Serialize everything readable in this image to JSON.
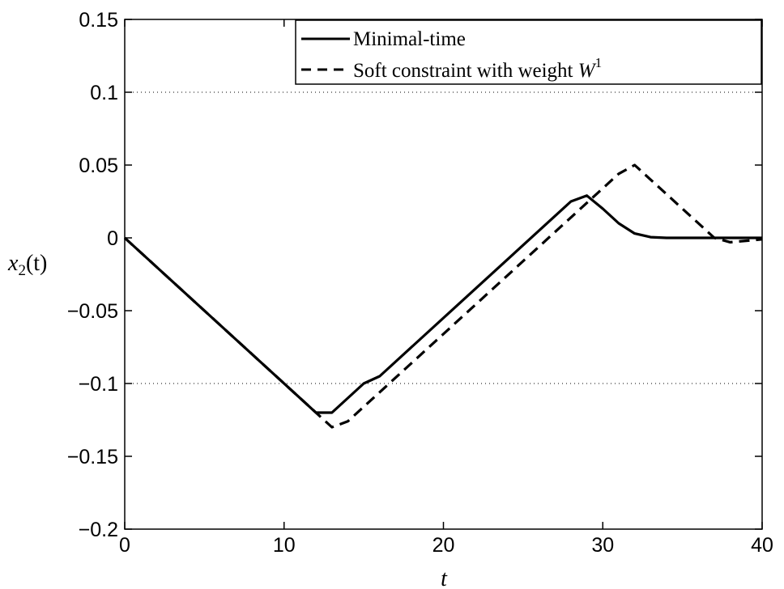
{
  "chart_data": {
    "type": "line",
    "xlabel": "t",
    "ylabel": "x2(t)",
    "ylabel_main": "x",
    "ylabel_sub": "2",
    "ylabel_arg": "(t)",
    "xlim": [
      0,
      40
    ],
    "ylim": [
      -0.2,
      0.15
    ],
    "xticks": [
      0,
      10,
      20,
      30,
      40
    ],
    "xtick_labels": [
      "0",
      "10",
      "20",
      "30",
      "40"
    ],
    "yticks": [
      0.15,
      0.1,
      0.05,
      0,
      -0.05,
      -0.1,
      -0.15,
      -0.2
    ],
    "ytick_labels": [
      "0.15",
      "0.1",
      "0.05",
      "0",
      "−0.05",
      "−0.1",
      "−0.15",
      "−0.2"
    ],
    "grid": "dotted horizontal lines at y = 0.1 and y = -0.1",
    "gridlines_y": [
      0.1,
      -0.1
    ],
    "legend_position": "top-right",
    "series": [
      {
        "name": "Minimal-time",
        "style": "solid",
        "color": "#000000",
        "x": [
          0,
          12,
          12.2,
          13,
          15,
          16,
          28,
          29,
          30,
          31,
          32,
          33,
          34,
          35,
          40
        ],
        "y": [
          0,
          -0.12,
          -0.12,
          -0.12,
          -0.1,
          -0.095,
          0.025,
          0.029,
          0.02,
          0.01,
          0.003,
          0.0005,
          0,
          0,
          0
        ]
      },
      {
        "name": "Soft constraint with weight W1",
        "style": "dashed",
        "color": "#000000",
        "x": [
          0,
          13,
          14,
          31,
          32,
          37,
          38,
          39,
          40
        ],
        "y": [
          0,
          -0.13,
          -0.126,
          0.044,
          0.05,
          0,
          -0.003,
          -0.002,
          -0.001
        ]
      }
    ],
    "legend": {
      "entry1": "Minimal-time",
      "entry2_text": "Soft constraint with weight ",
      "entry2_var": "W",
      "entry2_sup": "1"
    }
  }
}
